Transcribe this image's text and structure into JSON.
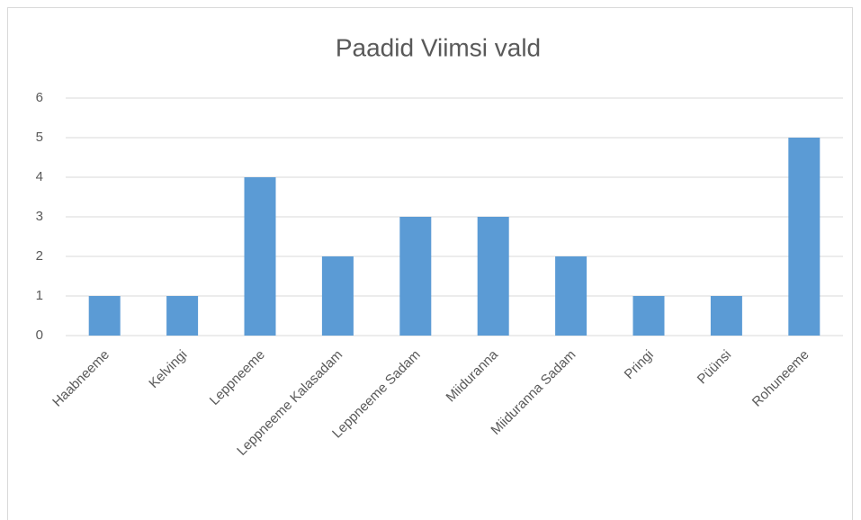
{
  "chart_data": {
    "type": "bar",
    "title": "Paadid Viimsi vald",
    "categories": [
      "Haabneeme",
      "Kelvingi",
      "Leppneeme",
      "Leppneeme Kalasadam",
      "Leppneeme Sadam",
      "Miiduranna",
      "Miiduranna Sadam",
      "Pringi",
      "Püünsi",
      "Rohuneeme"
    ],
    "values": [
      1,
      1,
      4,
      2,
      3,
      3,
      2,
      1,
      1,
      5
    ],
    "color": "#5b9bd5",
    "ylim": [
      0,
      6
    ],
    "yticks": [
      0,
      1,
      2,
      3,
      4,
      5,
      6
    ],
    "grid": true
  }
}
